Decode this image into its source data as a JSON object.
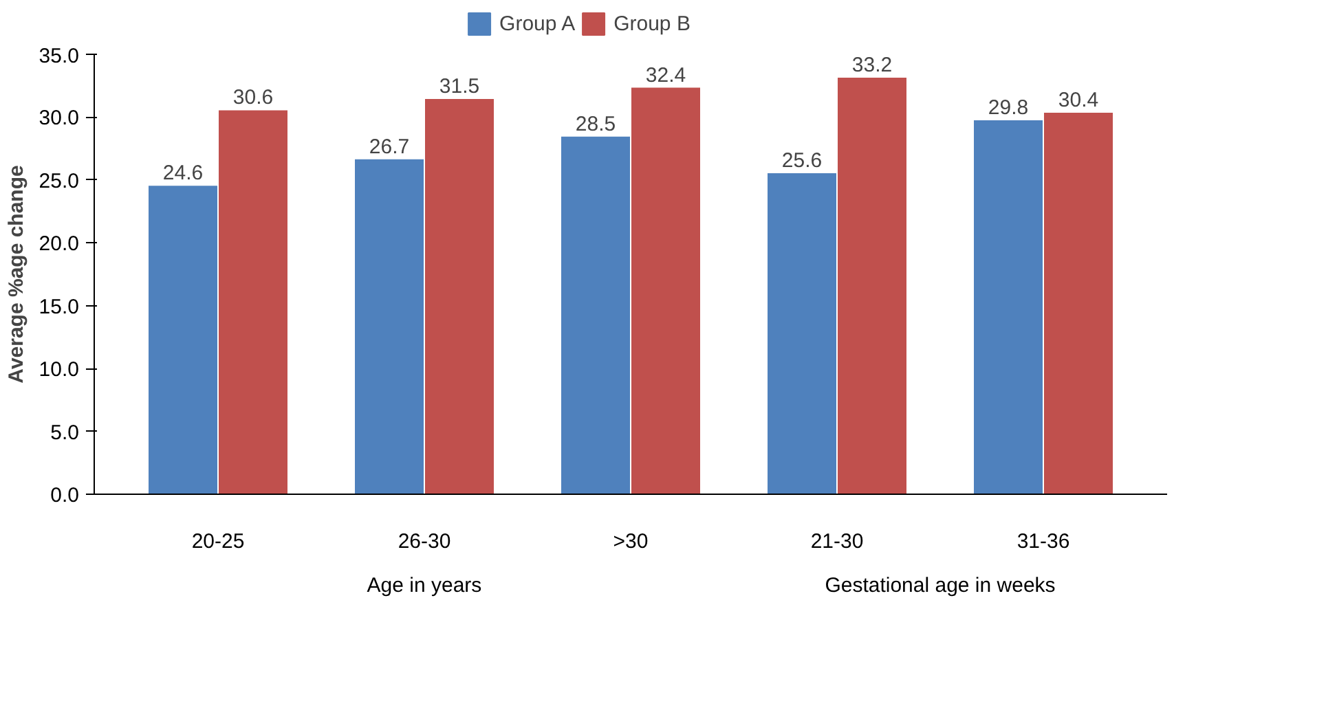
{
  "chart_data": {
    "type": "bar",
    "ylabel": "Average %age change",
    "categories": [
      "20-25",
      "26-30",
      ">30",
      "21-30",
      "31-36"
    ],
    "series": [
      {
        "name": "Group A",
        "color": "#4f81bd",
        "values": [
          24.6,
          26.7,
          28.5,
          25.6,
          29.8
        ]
      },
      {
        "name": "Group B",
        "color": "#c0504d",
        "values": [
          30.6,
          31.5,
          32.4,
          33.2,
          30.4
        ]
      }
    ],
    "ylim": [
      0,
      35
    ],
    "yticks": [
      {
        "value": 0,
        "label": "0.0"
      },
      {
        "value": 5,
        "label": "5.0"
      },
      {
        "value": 10,
        "label": "10.0"
      },
      {
        "value": 15,
        "label": "15.0"
      },
      {
        "value": 20,
        "label": "20.0"
      },
      {
        "value": 25,
        "label": "25.0"
      },
      {
        "value": 30,
        "label": "30.0"
      },
      {
        "value": 35,
        "label": "35.0"
      }
    ],
    "annotations": [
      "Age in years",
      "Gestational age in weeks"
    ],
    "data_labels": true,
    "legend": "top",
    "grid": false
  }
}
